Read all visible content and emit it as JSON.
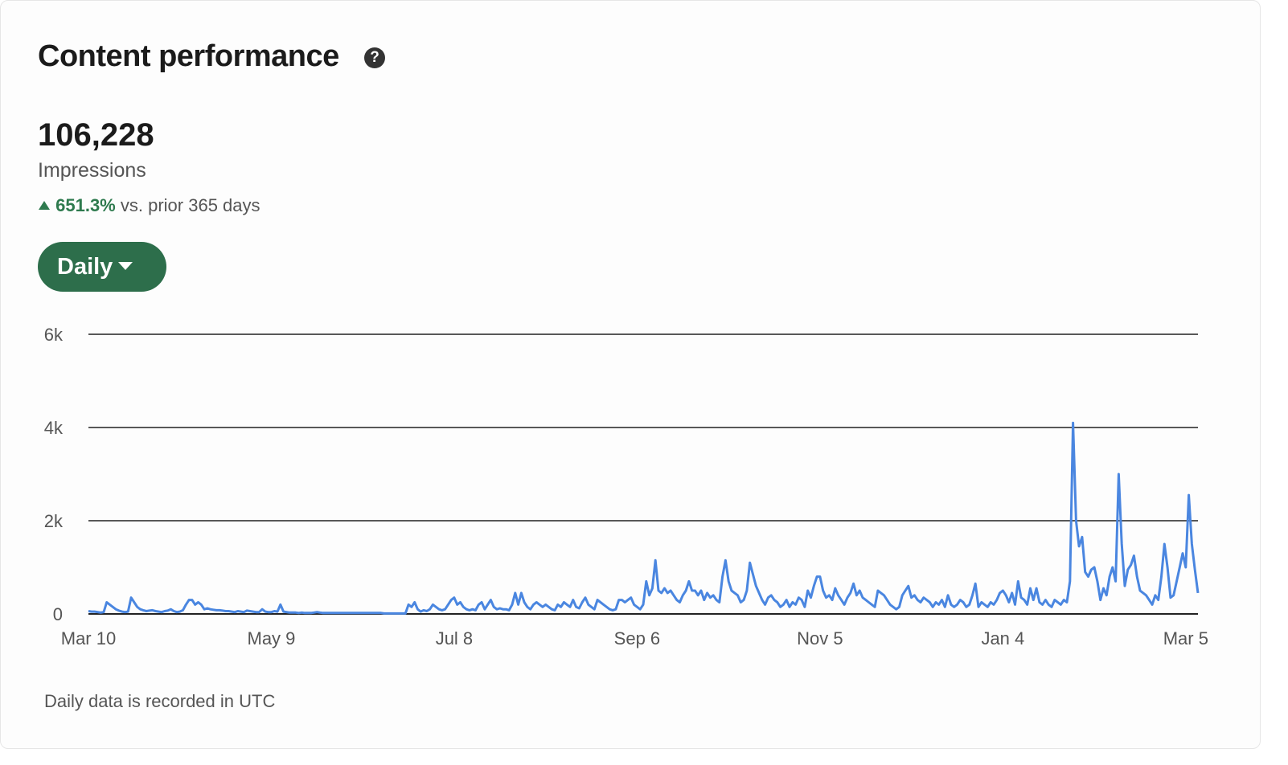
{
  "header": {
    "title": "Content performance",
    "help": "?"
  },
  "summary": {
    "value": "106,228",
    "label": "Impressions",
    "change": "651.3%",
    "comparison": "vs. prior 365 days"
  },
  "filter": {
    "label": "Daily"
  },
  "chart_data": {
    "type": "line",
    "color": "#4a86e0",
    "values": [
      60,
      50,
      50,
      40,
      30,
      40,
      250,
      200,
      150,
      100,
      70,
      50,
      40,
      50,
      350,
      250,
      150,
      100,
      80,
      60,
      70,
      80,
      60,
      50,
      40,
      60,
      70,
      100,
      60,
      40,
      50,
      80,
      200,
      300,
      300,
      200,
      250,
      200,
      100,
      120,
      100,
      90,
      80,
      80,
      70,
      60,
      60,
      50,
      40,
      60,
      50,
      40,
      70,
      60,
      50,
      40,
      40,
      100,
      50,
      40,
      40,
      60,
      50,
      200,
      50,
      40,
      30,
      30,
      30,
      20,
      30,
      20,
      20,
      20,
      30,
      40,
      30,
      20,
      20,
      20,
      20,
      20,
      20,
      20,
      20,
      20,
      20,
      20,
      20,
      20,
      20,
      20,
      20,
      20,
      20,
      20,
      20,
      10,
      10,
      10,
      10,
      10,
      10,
      10,
      10,
      200,
      150,
      250,
      100,
      50,
      80,
      60,
      100,
      200,
      150,
      100,
      80,
      100,
      200,
      300,
      350,
      200,
      250,
      150,
      100,
      80,
      100,
      80,
      200,
      250,
      100,
      200,
      300,
      150,
      100,
      120,
      100,
      100,
      80,
      200,
      450,
      200,
      450,
      250,
      150,
      100,
      200,
      250,
      200,
      150,
      200,
      150,
      100,
      80,
      200,
      150,
      250,
      200,
      150,
      300,
      150,
      120,
      250,
      350,
      200,
      150,
      100,
      300,
      250,
      200,
      150,
      100,
      80,
      100,
      300,
      300,
      250,
      300,
      350,
      200,
      150,
      100,
      200,
      700,
      400,
      550,
      1150,
      500,
      450,
      550,
      450,
      500,
      400,
      300,
      250,
      400,
      500,
      700,
      500,
      500,
      400,
      500,
      300,
      450,
      350,
      400,
      300,
      250,
      800,
      1150,
      700,
      500,
      450,
      400,
      250,
      300,
      500,
      1100,
      850,
      600,
      450,
      300,
      200,
      350,
      400,
      300,
      250,
      150,
      200,
      300,
      150,
      250,
      200,
      350,
      300,
      150,
      500,
      350,
      600,
      800,
      800,
      500,
      350,
      400,
      300,
      550,
      400,
      300,
      200,
      350,
      450,
      650,
      400,
      500,
      350,
      300,
      250,
      200,
      150,
      500,
      450,
      400,
      300,
      200,
      150,
      100,
      150,
      400,
      500,
      600,
      350,
      400,
      300,
      250,
      350,
      300,
      250,
      150,
      250,
      200,
      300,
      150,
      400,
      200,
      150,
      200,
      300,
      250,
      150,
      200,
      400,
      650,
      150,
      250,
      200,
      150,
      250,
      200,
      300,
      450,
      500,
      400,
      250,
      450,
      200,
      700,
      350,
      300,
      200,
      550,
      300,
      550,
      250,
      200,
      300,
      200,
      150,
      300,
      250,
      200,
      300,
      250,
      700,
      4100,
      2000,
      1450,
      1650,
      900,
      800,
      950,
      1000,
      700,
      300,
      550,
      400,
      800,
      1000,
      700,
      3000,
      1500,
      600,
      950,
      1050,
      1250,
      800,
      500,
      450,
      400,
      300,
      200,
      400,
      300,
      800,
      1500,
      1000,
      350,
      400,
      700,
      1000,
      1300,
      1000,
      2550,
      1500,
      950,
      450
    ],
    "xlim": [
      0,
      364
    ],
    "xticks": [
      {
        "value": 0,
        "label": "Mar 10"
      },
      {
        "value": 60,
        "label": "May 9"
      },
      {
        "value": 120,
        "label": "Jul 8"
      },
      {
        "value": 180,
        "label": "Sep 6"
      },
      {
        "value": 240,
        "label": "Nov 5"
      },
      {
        "value": 300,
        "label": "Jan 4"
      },
      {
        "value": 360,
        "label": "Mar 5"
      }
    ],
    "ylim": [
      0,
      6000
    ],
    "yticks": [
      0,
      {
        "value": 2000,
        "label": "2k"
      },
      {
        "value": 4000,
        "label": "4k"
      },
      {
        "value": 6000,
        "label": "6k"
      }
    ],
    "grid": true
  },
  "footnote": "Daily data is recorded in UTC"
}
